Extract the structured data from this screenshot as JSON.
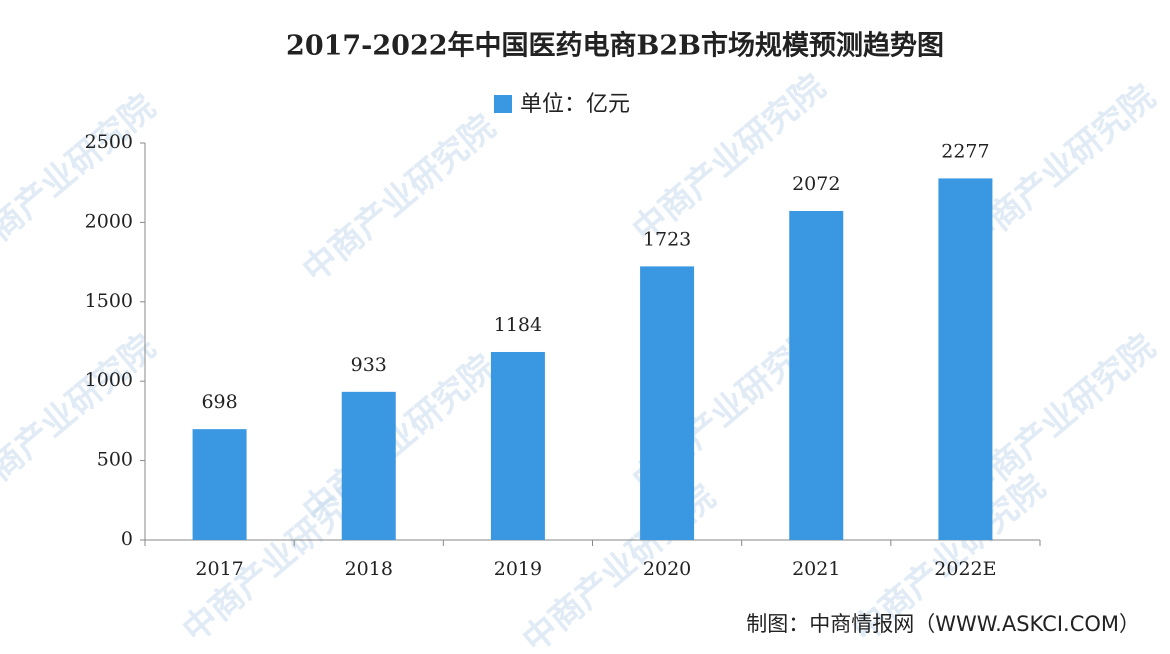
{
  "chart_data": {
    "type": "bar",
    "title": "2017-2022年中国医药电商B2B市场规模预测趋势图",
    "legend": "单位：亿元",
    "categories": [
      "2017",
      "2018",
      "2019",
      "2020",
      "2021",
      "2022E"
    ],
    "values": [
      698,
      933,
      1184,
      1723,
      2072,
      2277
    ],
    "color": "#3a98e2",
    "ylim": [
      0,
      2500
    ],
    "yticks": [
      0,
      500,
      1000,
      1500,
      2000,
      2500
    ],
    "source": "制图：中商情报网（WWW.ASKCI.COM）",
    "watermark": "中商产业研究院"
  }
}
